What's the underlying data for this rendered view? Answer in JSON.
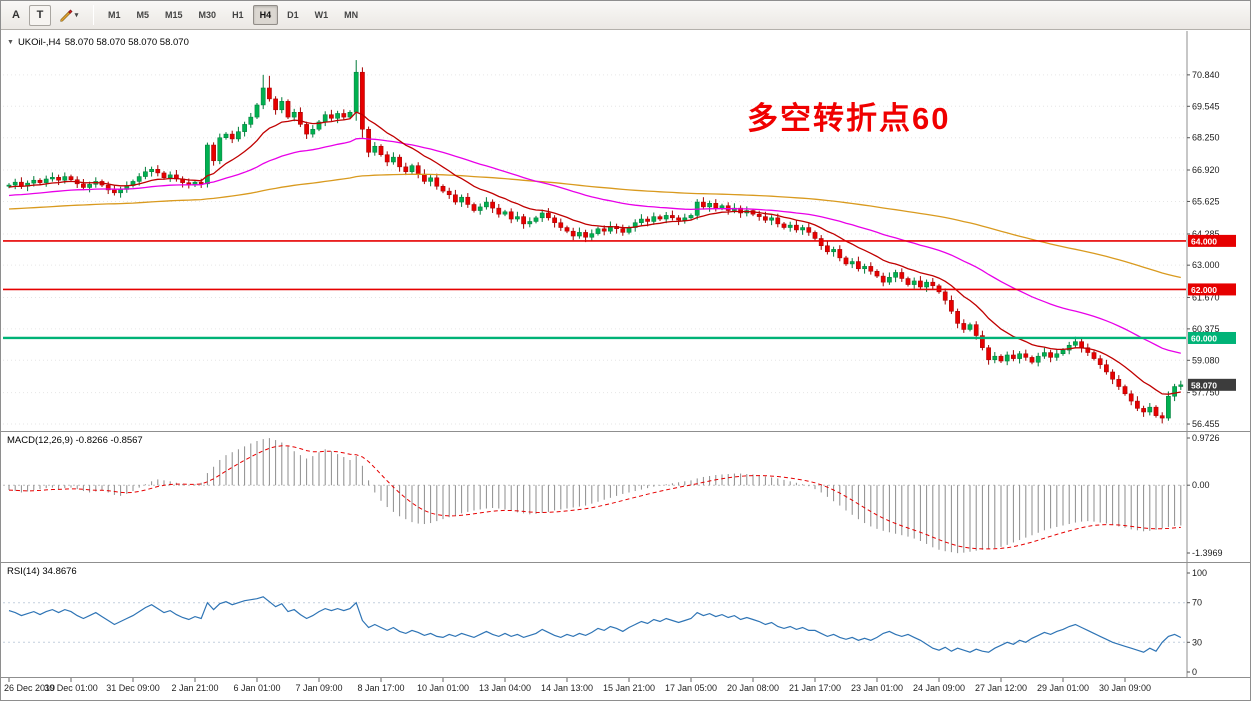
{
  "toolbar": {
    "tool_a_label": "A",
    "tool_t_label": "T",
    "crayon_icon": "crayon",
    "timeframes": [
      "M1",
      "M5",
      "M15",
      "M30",
      "H1",
      "H4",
      "D1",
      "W1",
      "MN"
    ],
    "active_timeframe": "H4"
  },
  "chart": {
    "collapse_icon": "▼",
    "symbol_label": "UKOil-,H4",
    "quote_line": "58.070 58.070 58.070 58.070",
    "annotation_text": "多空转折点60",
    "annotation_color": "#F00000"
  },
  "macd": {
    "label": "MACD(12,26,9) -0.8266 -0.8567"
  },
  "rsi": {
    "label": "RSI(14) 34.8676"
  },
  "chart_data": {
    "type": "candlestick",
    "symbol": "UKOil",
    "timeframe": "H4",
    "price_range": [
      56.25,
      72.4
    ],
    "price_axis_ticks": [
      "70.840",
      "69.545",
      "68.250",
      "66.920",
      "65.625",
      "64.285",
      "63.000",
      "61.670",
      "60.375",
      "59.080",
      "57.750",
      "56.455"
    ],
    "hlines": [
      {
        "value": 64.0,
        "label": "64.000",
        "color": "#E60000",
        "width": 1.6
      },
      {
        "value": 62.0,
        "label": "62.000",
        "color": "#E60000",
        "width": 1.6
      },
      {
        "value": 60.0,
        "label": "60.000",
        "color": "#00B377",
        "width": 2.4
      }
    ],
    "current_price": {
      "value": 58.07,
      "label": "58.070",
      "bg": "#3C3C3C"
    },
    "colors": {
      "bull": "#00B050",
      "bull_border": "#007A38",
      "bear": "#E60000",
      "bear_border": "#A30000",
      "macd_hist": "#8C8C8C",
      "macd_signal": "#E60000",
      "rsi_line": "#2E74B5",
      "grid": "#E6E6E6",
      "axis_text": "#1A1A1A"
    },
    "first_open": 66.25,
    "default_wick": 0.08,
    "closes": [
      66.3,
      66.42,
      66.25,
      66.38,
      66.5,
      66.4,
      66.55,
      66.62,
      66.5,
      66.65,
      66.52,
      66.35,
      66.2,
      66.33,
      66.45,
      66.3,
      66.1,
      65.98,
      66.12,
      66.28,
      66.45,
      66.65,
      66.85,
      66.95,
      66.8,
      66.6,
      66.72,
      66.55,
      66.4,
      66.3,
      66.42,
      66.35,
      67.95,
      67.3,
      68.25,
      68.4,
      68.2,
      68.5,
      68.8,
      69.1,
      69.6,
      70.3,
      69.85,
      69.4,
      69.75,
      69.1,
      69.3,
      68.8,
      68.4,
      68.6,
      68.9,
      69.2,
      69.05,
      69.25,
      69.1,
      69.3,
      70.95,
      68.6,
      67.65,
      67.9,
      67.55,
      67.25,
      67.45,
      67.05,
      66.85,
      67.1,
      66.75,
      66.45,
      66.6,
      66.25,
      66.05,
      65.9,
      65.6,
      65.8,
      65.5,
      65.25,
      65.4,
      65.6,
      65.35,
      65.1,
      65.2,
      64.9,
      65.0,
      64.7,
      64.8,
      64.95,
      65.15,
      64.95,
      64.75,
      64.55,
      64.4,
      64.2,
      64.35,
      64.15,
      64.3,
      64.5,
      64.4,
      64.6,
      64.5,
      64.35,
      64.55,
      64.75,
      64.9,
      64.8,
      65.0,
      64.9,
      65.05,
      64.95,
      64.85,
      64.95,
      65.05,
      65.6,
      65.4,
      65.55,
      65.35,
      65.45,
      65.25,
      65.35,
      65.15,
      65.25,
      65.1,
      65.0,
      64.85,
      64.95,
      64.7,
      64.55,
      64.65,
      64.45,
      64.55,
      64.35,
      64.1,
      63.8,
      63.55,
      63.65,
      63.3,
      63.05,
      63.15,
      62.85,
      62.95,
      62.75,
      62.55,
      62.3,
      62.5,
      62.7,
      62.45,
      62.2,
      62.35,
      62.1,
      62.3,
      62.15,
      61.9,
      61.55,
      61.1,
      60.6,
      60.35,
      60.55,
      60.1,
      59.6,
      59.1,
      59.25,
      59.05,
      59.3,
      59.15,
      59.35,
      59.2,
      59.0,
      59.25,
      59.4,
      59.2,
      59.35,
      59.5,
      59.7,
      59.85,
      59.6,
      59.4,
      59.15,
      58.9,
      58.6,
      58.3,
      58.0,
      57.7,
      57.4,
      57.1,
      56.95,
      57.15,
      56.8,
      56.7,
      57.6,
      58.0,
      58.07
    ],
    "wick_overrides": {
      "32": {
        "high": 68.05,
        "low": 66.2
      },
      "41": {
        "high": 70.84
      },
      "42": {
        "high": 70.8
      },
      "56": {
        "high": 71.45,
        "low": 68.95
      },
      "57": {
        "low": 68.25
      },
      "111": {
        "high": 65.72
      },
      "158": {
        "low": 58.9
      },
      "172": {
        "high": 60.05
      },
      "186": {
        "low": 56.48
      }
    },
    "ma_lines": [
      {
        "name": "ma-slow",
        "period": 150,
        "seed": 65.3,
        "color": "#D99A1F"
      },
      {
        "name": "ma-mid",
        "period": 45,
        "seed": 65.85,
        "color": "#E800E8"
      },
      {
        "name": "ma-fast",
        "period": 13,
        "seed": 66.2,
        "color": "#C00000"
      }
    ],
    "macd": {
      "params": "12,26,9",
      "value": -0.8266,
      "signal_value": -0.8567,
      "signal_period": 9,
      "axis_ticks": [
        "0.9726",
        "0.00",
        "-1.3969"
      ],
      "values": [
        -0.1,
        -0.12,
        -0.15,
        -0.13,
        -0.1,
        -0.08,
        -0.06,
        -0.05,
        -0.08,
        -0.06,
        -0.05,
        -0.08,
        -0.12,
        -0.15,
        -0.13,
        -0.1,
        -0.15,
        -0.2,
        -0.22,
        -0.18,
        -0.12,
        -0.05,
        0.02,
        0.08,
        0.12,
        0.1,
        0.08,
        0.05,
        0.02,
        0.0,
        0.02,
        0.05,
        0.25,
        0.38,
        0.52,
        0.62,
        0.68,
        0.74,
        0.8,
        0.86,
        0.91,
        0.95,
        0.97,
        0.93,
        0.88,
        0.8,
        0.7,
        0.62,
        0.55,
        0.6,
        0.68,
        0.74,
        0.7,
        0.64,
        0.58,
        0.52,
        0.6,
        0.4,
        0.1,
        -0.15,
        -0.32,
        -0.45,
        -0.55,
        -0.64,
        -0.7,
        -0.76,
        -0.79,
        -0.8,
        -0.78,
        -0.74,
        -0.7,
        -0.66,
        -0.62,
        -0.58,
        -0.55,
        -0.52,
        -0.5,
        -0.48,
        -0.47,
        -0.48,
        -0.5,
        -0.53,
        -0.56,
        -0.58,
        -0.6,
        -0.59,
        -0.57,
        -0.55,
        -0.52,
        -0.5,
        -0.48,
        -0.46,
        -0.44,
        -0.42,
        -0.38,
        -0.34,
        -0.3,
        -0.26,
        -0.22,
        -0.18,
        -0.15,
        -0.12,
        -0.09,
        -0.06,
        -0.03,
        -0.01,
        0.02,
        0.04,
        0.06,
        0.08,
        0.1,
        0.14,
        0.17,
        0.19,
        0.21,
        0.22,
        0.23,
        0.24,
        0.24,
        0.23,
        0.22,
        0.2,
        0.18,
        0.16,
        0.14,
        0.11,
        0.08,
        0.05,
        0.02,
        -0.02,
        -0.08,
        -0.15,
        -0.24,
        -0.33,
        -0.42,
        -0.52,
        -0.61,
        -0.7,
        -0.78,
        -0.85,
        -0.9,
        -0.94,
        -0.97,
        -1.0,
        -1.03,
        -1.06,
        -1.1,
        -1.15,
        -1.21,
        -1.28,
        -1.33,
        -1.36,
        -1.38,
        -1.4,
        -1.39,
        -1.37,
        -1.35,
        -1.33,
        -1.32,
        -1.3,
        -1.27,
        -1.23,
        -1.18,
        -1.13,
        -1.08,
        -1.03,
        -0.98,
        -0.93,
        -0.89,
        -0.86,
        -0.83,
        -0.8,
        -0.77,
        -0.75,
        -0.74,
        -0.75,
        -0.77,
        -0.79,
        -0.82,
        -0.85,
        -0.88,
        -0.91,
        -0.93,
        -0.95,
        -0.94,
        -0.92,
        -0.89,
        -0.86,
        -0.84,
        -0.83
      ]
    },
    "rsi": {
      "params": "14",
      "value": 34.8676,
      "axis_ticks": [
        "100",
        "70",
        "30",
        "0"
      ],
      "levels": [
        70,
        30
      ],
      "values": [
        62,
        60,
        57,
        59,
        61,
        58,
        61,
        63,
        60,
        63,
        61,
        57,
        54,
        57,
        60,
        56,
        52,
        48,
        51,
        54,
        57,
        61,
        65,
        68,
        64,
        60,
        62,
        58,
        55,
        53,
        56,
        54,
        70,
        63,
        69,
        71,
        68,
        70,
        72,
        73,
        74,
        76,
        71,
        66,
        69,
        61,
        63,
        58,
        54,
        57,
        61,
        64,
        62,
        64,
        62,
        64,
        70,
        52,
        45,
        48,
        45,
        42,
        45,
        41,
        39,
        42,
        40,
        37,
        39,
        36,
        35,
        38,
        36,
        39,
        37,
        35,
        38,
        41,
        38,
        36,
        39,
        36,
        38,
        35,
        37,
        39,
        43,
        40,
        37,
        35,
        38,
        36,
        39,
        37,
        40,
        44,
        42,
        46,
        44,
        41,
        45,
        48,
        51,
        49,
        53,
        51,
        54,
        52,
        50,
        52,
        54,
        60,
        57,
        59,
        56,
        58,
        55,
        57,
        53,
        55,
        53,
        51,
        48,
        50,
        46,
        44,
        46,
        43,
        45,
        42,
        42,
        39,
        36,
        38,
        35,
        33,
        35,
        32,
        34,
        32,
        35,
        39,
        41,
        38,
        36,
        38,
        35,
        32,
        28,
        24,
        22,
        25,
        21,
        24,
        22,
        20,
        23,
        21,
        20,
        24,
        27,
        30,
        28,
        32,
        30,
        34,
        37,
        40,
        38,
        41,
        43,
        46,
        48,
        45,
        42,
        39,
        36,
        33,
        30,
        28,
        26,
        24,
        22,
        20,
        24,
        21,
        30,
        36,
        38,
        34.87
      ]
    },
    "time_labels": [
      {
        "bar": 0,
        "text": "26 Dec 2019"
      },
      {
        "bar": 10,
        "text": "30 Dec 01:00"
      },
      {
        "bar": 20,
        "text": "31 Dec 09:00"
      },
      {
        "bar": 30,
        "text": "2 Jan 21:00"
      },
      {
        "bar": 40,
        "text": "6 Jan 01:00"
      },
      {
        "bar": 50,
        "text": "7 Jan 09:00"
      },
      {
        "bar": 60,
        "text": "8 Jan 17:00"
      },
      {
        "bar": 70,
        "text": "10 Jan 01:00"
      },
      {
        "bar": 80,
        "text": "13 Jan 04:00"
      },
      {
        "bar": 90,
        "text": "14 Jan 13:00"
      },
      {
        "bar": 100,
        "text": "15 Jan 21:00"
      },
      {
        "bar": 110,
        "text": "17 Jan 05:00"
      },
      {
        "bar": 120,
        "text": "20 Jan 08:00"
      },
      {
        "bar": 130,
        "text": "21 Jan 17:00"
      },
      {
        "bar": 140,
        "text": "23 Jan 01:00"
      },
      {
        "bar": 150,
        "text": "24 Jan 09:00"
      },
      {
        "bar": 160,
        "text": "27 Jan 12:00"
      },
      {
        "bar": 170,
        "text": "29 Jan 01:00"
      },
      {
        "bar": 180,
        "text": "30 Jan 09:00"
      }
    ]
  }
}
